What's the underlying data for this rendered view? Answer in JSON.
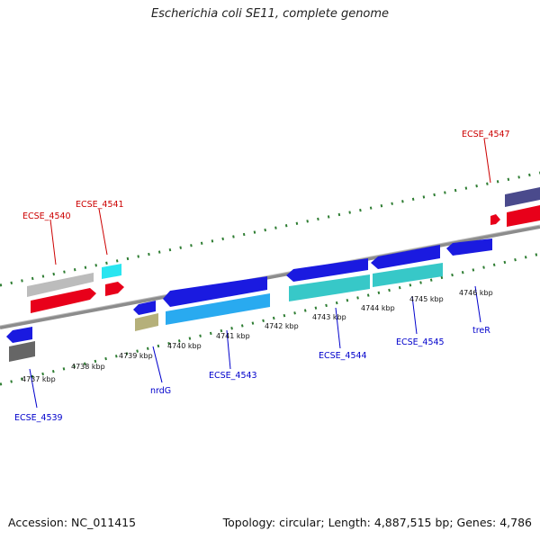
{
  "title": "Escherichia coli SE11, complete genome",
  "footer": {
    "accession": "Accession: NC_011415",
    "summary": "Topology: circular; Length: 4,887,515 bp; Genes: 4,786"
  },
  "colors": {
    "red_label": "#cc0000",
    "blue_label": "#0000cc",
    "backbone": "#8c8c8c",
    "ticks": "#2e7d32",
    "cds_forward": "#e8001a",
    "cds_reverse": "#1a1ae0",
    "gene_cyan": "#37c8c8",
    "gene_lightblue": "#29aaf0",
    "gene_gray": "#bcbcbc",
    "gene_darkgray": "#666666",
    "gene_khaki": "#b5b07a",
    "gene_navy": "#4a4a8c"
  },
  "kbp_labels": [
    "4737 kbp",
    "4738 kbp",
    "4739 kbp",
    "4740 kbp",
    "4741 kbp",
    "4742 kbp",
    "4743 kbp",
    "4744 kbp",
    "4745 kbp",
    "4746 kbp"
  ],
  "gene_labels": {
    "top": [
      "ECSE_4540",
      "ECSE_4541",
      "ECSE_4547"
    ],
    "bottom": [
      "ECSE_4539",
      "nrdG",
      "ECSE_4543",
      "ECSE_4544",
      "ECSE_4545",
      "treR"
    ]
  }
}
